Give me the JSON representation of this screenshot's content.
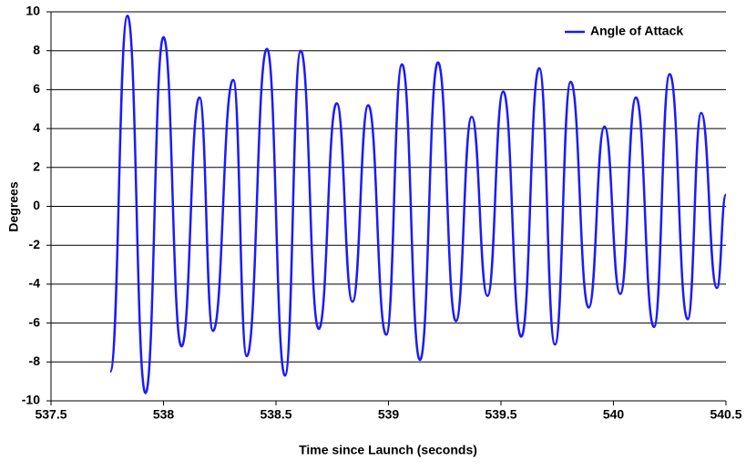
{
  "chart_data": {
    "type": "line",
    "x_label": "Time since Launch (seconds)",
    "y_label": "Degrees",
    "x": [
      537.763,
      537.84,
      537.92,
      538.0,
      538.08,
      538.16,
      538.22,
      538.31,
      538.37,
      538.46,
      538.54,
      538.61,
      538.69,
      538.77,
      538.84,
      538.91,
      538.99,
      539.06,
      539.14,
      539.22,
      539.3,
      539.37,
      539.44,
      539.51,
      539.59,
      539.67,
      539.74,
      539.81,
      539.89,
      539.96,
      540.03,
      540.1,
      540.18,
      540.25,
      540.33,
      540.39,
      540.46,
      540.5
    ],
    "series": [
      {
        "name": "Angle of Attack",
        "color": "#1a1aff",
        "values": [
          -8.5,
          9.8,
          -9.6,
          8.7,
          -7.2,
          5.6,
          -6.4,
          6.5,
          -7.7,
          8.1,
          -8.7,
          8.0,
          -6.3,
          5.3,
          -4.9,
          5.2,
          -6.6,
          7.3,
          -7.9,
          7.4,
          -5.9,
          4.6,
          -4.6,
          5.9,
          -6.7,
          7.1,
          -7.1,
          6.4,
          -5.2,
          4.1,
          -4.5,
          5.6,
          -6.2,
          6.8,
          -5.8,
          4.8,
          -4.2,
          0.6
        ]
      }
    ],
    "xlim": [
      537.5,
      540.5
    ],
    "xticks": [
      537.5,
      538,
      538.5,
      539,
      539.5,
      540,
      540.5
    ],
    "ylim": [
      -10,
      10
    ],
    "yticks": [
      -10,
      -8,
      -6,
      -4,
      -2,
      0,
      2,
      4,
      6,
      8,
      10
    ],
    "grid": true,
    "legend": "upper right"
  }
}
